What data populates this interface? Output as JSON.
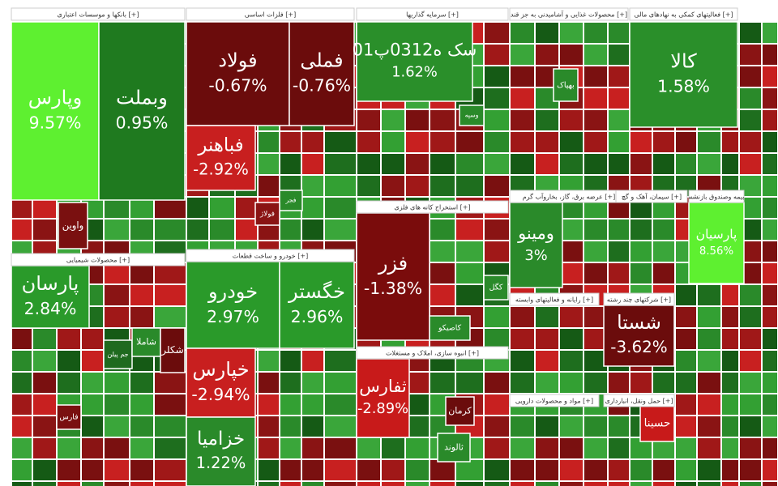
{
  "chart_data": {
    "type": "treemap",
    "sectors": [
      {
        "header": "بانکها و موسسات اعتباری [+]",
        "tiles": [
          {
            "name": "وپارس",
            "value": 9.57,
            "value_label": "9.57%",
            "color": "#5ef030"
          },
          {
            "name": "وبملت",
            "value": 0.95,
            "value_label": "0.95%",
            "color": "#1f7a1f"
          },
          {
            "name": "واوین",
            "color": "#7a1010"
          }
        ]
      },
      {
        "header": "فلزات اساسی [+]",
        "tiles": [
          {
            "name": "فولاد",
            "value": -0.67,
            "value_label": "-0.67%",
            "color": "#6b0c0c"
          },
          {
            "name": "فملی",
            "value": -0.76,
            "value_label": "-0.76%",
            "color": "#6b0c0c"
          },
          {
            "name": "فباهنر",
            "value": -2.92,
            "value_label": "-2.92%",
            "color": "#c81f1f"
          },
          {
            "name": "فجر",
            "color": "#2a8a2a"
          },
          {
            "name": "فولاژ",
            "color": "#8a1414"
          }
        ]
      },
      {
        "header": "سرمایه گذاریها [+]",
        "tiles": [
          {
            "name": "سک ه0312پ01",
            "value": 1.62,
            "value_label": "1.62%",
            "color": "#2a8f2a"
          },
          {
            "name": "وسپه",
            "color": "#2a8a2a"
          }
        ]
      },
      {
        "header": "استخراج کانه های فلزی [+]",
        "tiles": [
          {
            "name": "فزر",
            "value": -1.38,
            "value_label": "-1.38%",
            "color": "#7a0c0c"
          },
          {
            "name": "کگل",
            "color": "#2a8a2a"
          },
          {
            "name": "کاصیکو",
            "color": "#2a8a2a"
          }
        ]
      },
      {
        "header": "انبوه سازی، املاک و مستغلات [+]",
        "tiles": [
          {
            "name": "ثفارس",
            "value": -2.89,
            "value_label": "-2.89%",
            "color": "#c81a1a"
          },
          {
            "name": "کرمان",
            "color": "#6b0c0c"
          },
          {
            "name": "ثالوند",
            "color": "#2a8a2a"
          }
        ]
      },
      {
        "header": "محصولات شیمیایی [+]",
        "tiles": [
          {
            "name": "پارسان",
            "value": 2.84,
            "value_label": "2.84%",
            "color": "#2a9a2a"
          },
          {
            "name": "جم پیلن",
            "color": "#1f6a1f"
          },
          {
            "name": "شاملا",
            "color": "#2a8a2a"
          },
          {
            "name": "شکلر",
            "color": "#6b0c0c"
          },
          {
            "name": "فارس",
            "color": "#7a1010"
          }
        ]
      },
      {
        "header": "خودرو و ساخت قطعات [+]",
        "tiles": [
          {
            "name": "خودرو",
            "value": 2.97,
            "value_label": "2.97%",
            "color": "#2a9a2a"
          },
          {
            "name": "خگستر",
            "value": 2.96,
            "value_label": "2.96%",
            "color": "#2a9a2a"
          },
          {
            "name": "خپارس",
            "value": -2.94,
            "value_label": "-2.94%",
            "color": "#c81f1f"
          },
          {
            "name": "خزامیا",
            "value": 1.22,
            "value_label": "1.22%",
            "color": "#2a8a2a"
          }
        ]
      },
      {
        "header": "محصولات غذایی و آشامیدنی به جز قند [+]",
        "tiles": [
          {
            "name": "بهپاک",
            "color": "#2a8a2a"
          }
        ]
      },
      {
        "header": "عرضه برق، گاز، بخاروآب گرم [+]",
        "tiles": [
          {
            "name": "ومینو",
            "value": 3,
            "value_label": "3%",
            "color": "#2a8a2a"
          }
        ]
      },
      {
        "header": "رایانه و فعالیتهای وابسته [+]",
        "tiles": []
      },
      {
        "header": "مواد و محصولات دارویی [+]",
        "tiles": []
      },
      {
        "header": "فعالیتهای کمکی به نهادهای مالی [+]",
        "tiles": [
          {
            "name": "کالا",
            "value": 1.58,
            "value_label": "1.58%",
            "color": "#2a8f2a"
          }
        ]
      },
      {
        "header": "سیمان، آهک و گچ [+]",
        "tiles": []
      },
      {
        "header": "شرکتهای چند رشته [+]",
        "tiles": [
          {
            "name": "شستا",
            "value": -3.62,
            "value_label": "-3.62%",
            "color": "#6b0c0c"
          }
        ]
      },
      {
        "header": "حمل ونقل، انبارداری [+]",
        "tiles": [
          {
            "name": "حسینا",
            "color": "#c81a1a"
          }
        ]
      },
      {
        "header": "بیمه وصندوق بازنشستگی [+]",
        "tiles": [
          {
            "name": "پارسیان",
            "value": 8.56,
            "value_label": "8.56%",
            "color": "#5ef030"
          }
        ]
      }
    ]
  }
}
